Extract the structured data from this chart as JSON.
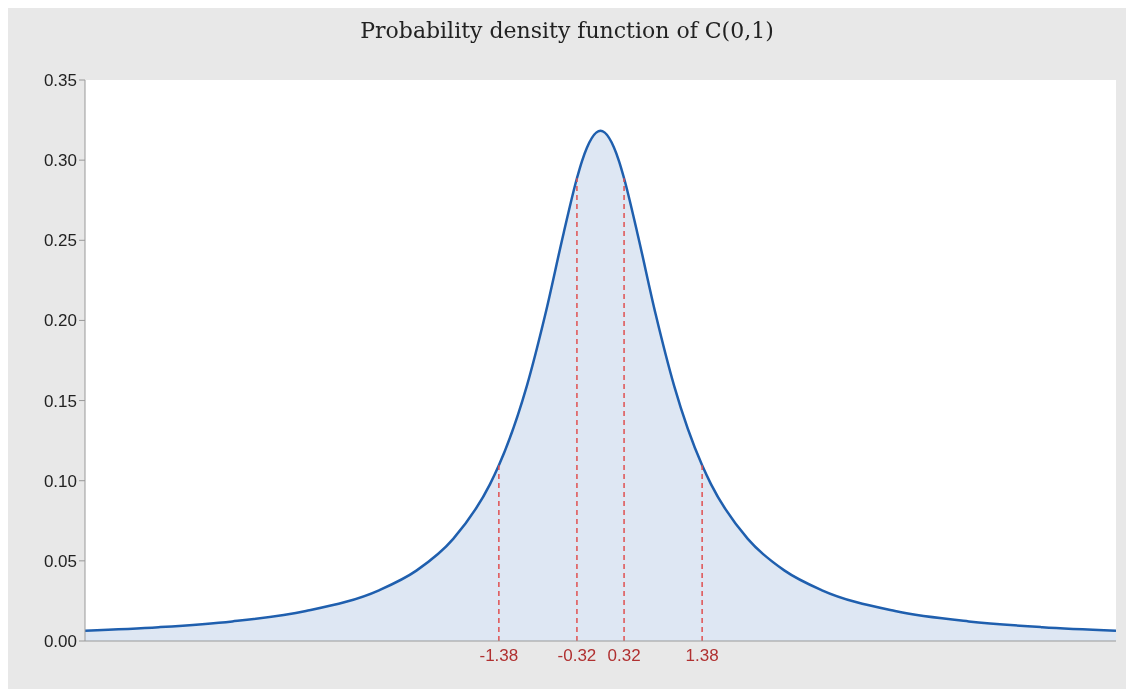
{
  "chart_data": {
    "type": "area",
    "title": "Probability density function of C(0,1)",
    "x": [
      -7,
      -6,
      -5,
      -4,
      -3,
      -2.5,
      -2,
      -1.5,
      -1.38,
      -1,
      -0.75,
      -0.5,
      -0.32,
      -0.25,
      0,
      0.25,
      0.32,
      0.5,
      0.75,
      1,
      1.38,
      1.5,
      2,
      2.5,
      3,
      4,
      5,
      6,
      7
    ],
    "series": [
      {
        "color": "#1f5fae",
        "values": [
          0.0064,
          0.0086,
          0.0122,
          0.0187,
          0.0318,
          0.0439,
          0.0637,
          0.0979,
          0.1096,
          0.1592,
          0.2037,
          0.2546,
          0.2887,
          0.2996,
          0.3183,
          0.2996,
          0.2887,
          0.2546,
          0.2037,
          0.1592,
          0.1096,
          0.0979,
          0.0637,
          0.0439,
          0.0318,
          0.0187,
          0.0122,
          0.0086,
          0.0064
        ]
      }
    ],
    "xlim": [
      -7,
      7
    ],
    "ylim": [
      0,
      0.35
    ],
    "yticks": [
      {
        "value": 0,
        "label": "0.00"
      },
      {
        "value": 0.05,
        "label": "0.05"
      },
      {
        "value": 0.1,
        "label": "0.10"
      },
      {
        "value": 0.15,
        "label": "0.15"
      },
      {
        "value": 0.2,
        "label": "0.20"
      },
      {
        "value": 0.25,
        "label": "0.25"
      },
      {
        "value": 0.3,
        "label": "0.30"
      },
      {
        "value": 0.35,
        "label": "0.35"
      }
    ],
    "tick_labels": "y",
    "grid": false,
    "legend": false,
    "marker": "none",
    "line_style": "solid",
    "ref_lines": [
      {
        "axis": "x",
        "value": -1.38,
        "label": "-1.38",
        "color": "#e05050",
        "line_style": "dashed"
      },
      {
        "axis": "x",
        "value": -0.32,
        "label": "-0.32",
        "color": "#e05050",
        "line_style": "dashed"
      },
      {
        "axis": "x",
        "value": 0.32,
        "label": "0.32",
        "color": "#e05050",
        "line_style": "dashed"
      },
      {
        "axis": "x",
        "value": 1.38,
        "label": "1.38",
        "color": "#e05050",
        "line_style": "dashed"
      }
    ]
  }
}
